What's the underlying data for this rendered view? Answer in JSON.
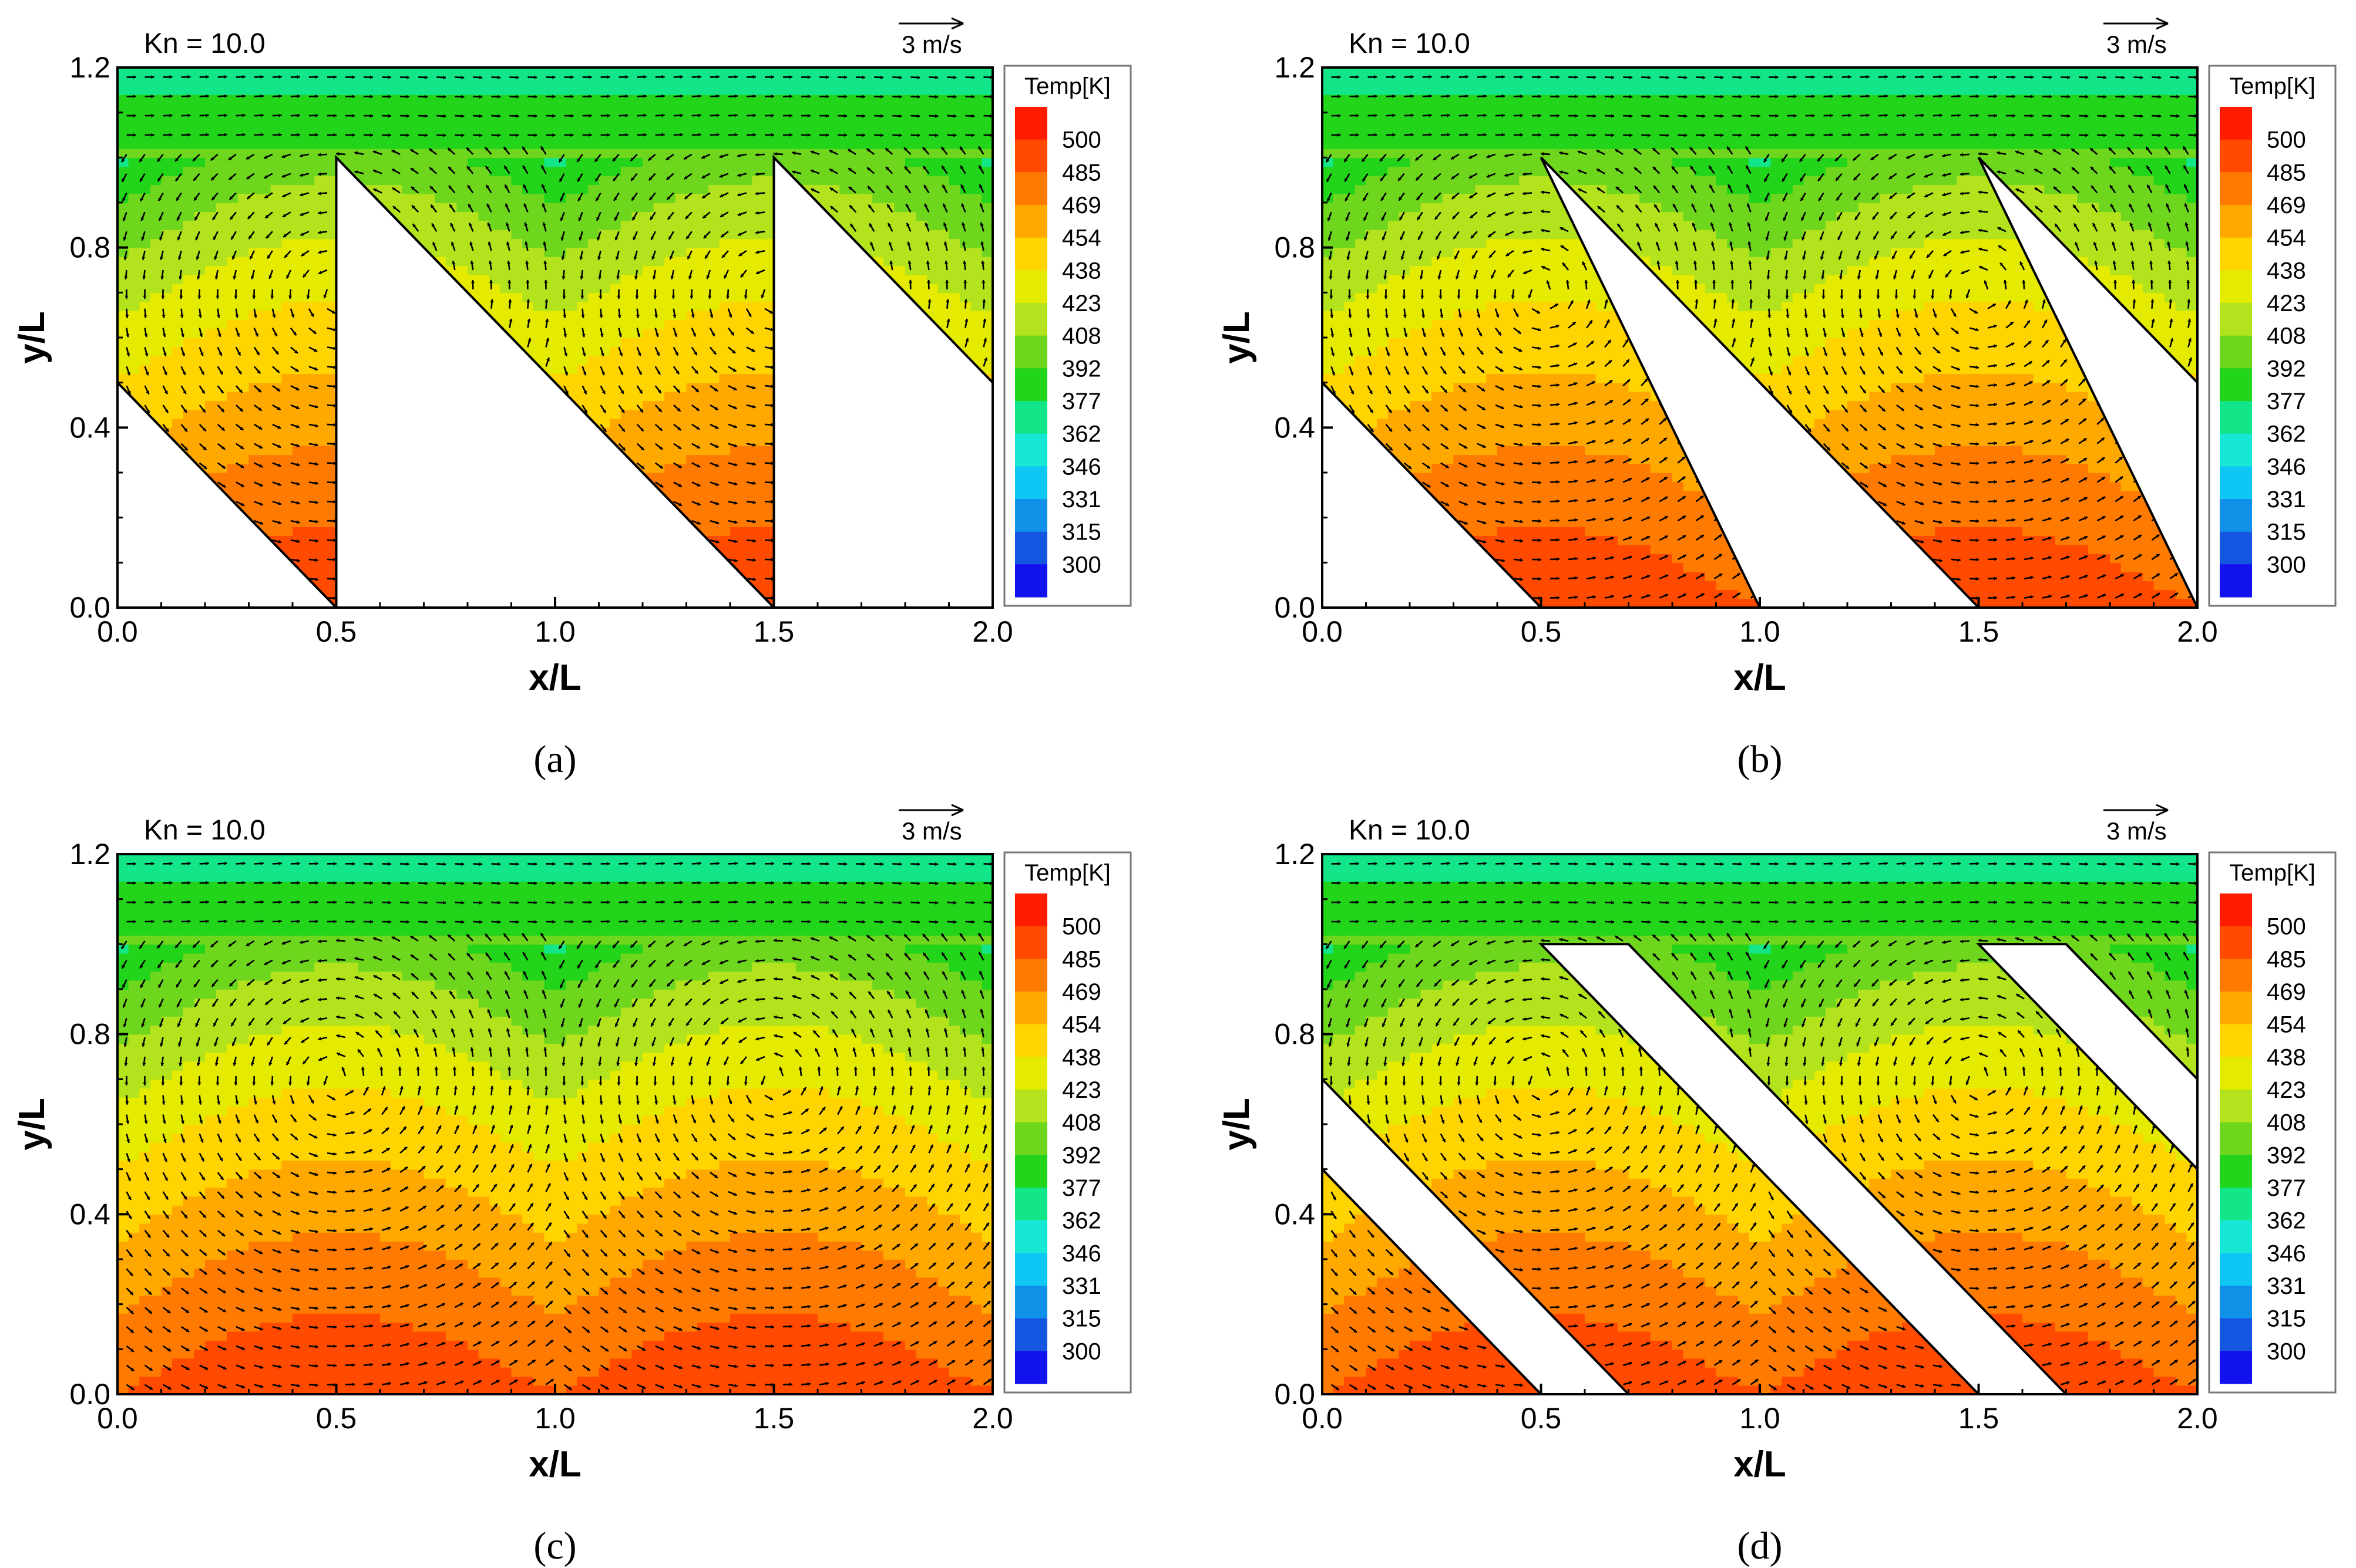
{
  "figure": {
    "panels": [
      "a",
      "b",
      "c",
      "d"
    ]
  },
  "colorbar": {
    "title": "Temp[K]",
    "levels": [
      "500",
      "485",
      "469",
      "454",
      "438",
      "423",
      "408",
      "392",
      "377",
      "362",
      "346",
      "331",
      "315",
      "300"
    ],
    "colors": [
      "#ff1c00",
      "#ff4a00",
      "#ff7a00",
      "#ffa800",
      "#ffd400",
      "#e4ea00",
      "#b3e31d",
      "#6fd61e",
      "#22d41a",
      "#12e688",
      "#17e8d6",
      "#0fc7f5",
      "#1190e8",
      "#1556e0",
      "#1212ee"
    ]
  },
  "chart_data": [
    {
      "id": "a",
      "type": "contour",
      "caption": "(a)",
      "annotation": "Kn = 10.0",
      "reference_vector": "3 m/s",
      "xlabel": "x/L",
      "ylabel": "y/L",
      "xlim": [
        0.0,
        2.0
      ],
      "ylim": [
        0.0,
        1.2
      ],
      "xticks": [
        "0.0",
        "0.5",
        "1.0",
        "1.5",
        "2.0"
      ],
      "yticks": [
        "0.0",
        "0.4",
        "0.8",
        "1.2"
      ],
      "obstacles": [
        [
          [
            0.0,
            0.0
          ],
          [
            0.0,
            0.5
          ],
          [
            0.5,
            0.0
          ]
        ],
        [
          [
            0.5,
            0.0
          ],
          [
            0.5,
            1.0
          ],
          [
            1.5,
            0.0
          ]
        ],
        [
          [
            1.5,
            0.0
          ],
          [
            1.5,
            1.0
          ],
          [
            2.0,
            0.5
          ],
          [
            2.0,
            0.0
          ]
        ]
      ],
      "hot_wall_temperature_K": 485,
      "top_temperature_K": 370
    },
    {
      "id": "b",
      "type": "contour",
      "caption": "(b)",
      "annotation": "Kn = 10.0",
      "reference_vector": "3 m/s",
      "xlabel": "x/L",
      "ylabel": "y/L",
      "xlim": [
        0.0,
        2.0
      ],
      "ylim": [
        0.0,
        1.2
      ],
      "xticks": [
        "0.0",
        "0.5",
        "1.0",
        "1.5",
        "2.0"
      ],
      "yticks": [
        "0.0",
        "0.4",
        "0.8",
        "1.2"
      ],
      "obstacles": [
        [
          [
            0.0,
            0.0
          ],
          [
            0.0,
            0.5
          ],
          [
            0.5,
            0.0
          ]
        ],
        [
          [
            0.5,
            1.0
          ],
          [
            1.0,
            0.0
          ],
          [
            1.5,
            0.0
          ]
        ],
        [
          [
            1.5,
            1.0
          ],
          [
            2.0,
            0.0
          ],
          [
            2.0,
            0.5
          ]
        ]
      ],
      "hot_wall_temperature_K": 485,
      "top_temperature_K": 370
    },
    {
      "id": "c",
      "type": "contour",
      "caption": "(c)",
      "annotation": "Kn = 10.0",
      "reference_vector": "3 m/s",
      "xlabel": "x/L",
      "ylabel": "y/L",
      "xlim": [
        0.0,
        2.0
      ],
      "ylim": [
        0.0,
        1.2
      ],
      "xticks": [
        "0.0",
        "0.5",
        "1.0",
        "1.5",
        "2.0"
      ],
      "yticks": [
        "0.0",
        "0.4",
        "0.8",
        "1.2"
      ],
      "obstacles": [],
      "hot_wall_temperature_K": 485,
      "top_temperature_K": 370
    },
    {
      "id": "d",
      "type": "contour",
      "caption": "(d)",
      "annotation": "Kn = 10.0",
      "reference_vector": "3 m/s",
      "xlabel": "x/L",
      "ylabel": "y/L",
      "xlim": [
        0.0,
        2.0
      ],
      "ylim": [
        0.0,
        1.2
      ],
      "xticks": [
        "0.0",
        "0.5",
        "1.0",
        "1.5",
        "2.0"
      ],
      "yticks": [
        "0.0",
        "0.4",
        "0.8",
        "1.2"
      ],
      "obstacles": [
        [
          [
            0.0,
            0.5
          ],
          [
            0.0,
            0.7
          ],
          [
            0.7,
            0.0
          ],
          [
            0.5,
            0.0
          ]
        ],
        [
          [
            0.5,
            1.0
          ],
          [
            0.7,
            1.0
          ],
          [
            1.7,
            0.0
          ],
          [
            1.5,
            0.0
          ]
        ],
        [
          [
            1.5,
            1.0
          ],
          [
            1.7,
            1.0
          ],
          [
            2.0,
            0.7
          ],
          [
            2.0,
            0.5
          ]
        ]
      ],
      "hot_wall_temperature_K": 485,
      "top_temperature_K": 370
    }
  ]
}
